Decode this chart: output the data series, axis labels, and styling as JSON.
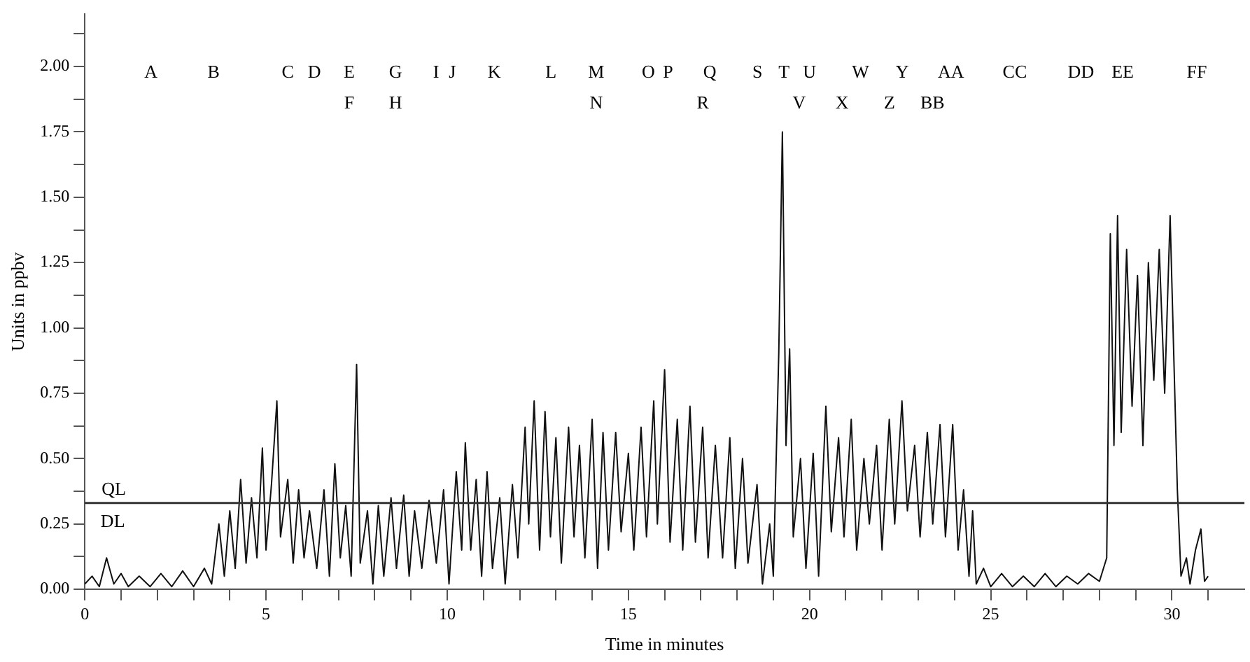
{
  "chart_data": {
    "type": "line",
    "xlabel": "Time in minutes",
    "ylabel": "Units in ppbv",
    "xlim": [
      0,
      32
    ],
    "ylim": [
      0,
      2.2
    ],
    "xticks": [
      0,
      {
        "value": 1,
        "label": null
      },
      {
        "value": 2,
        "label": null
      },
      {
        "value": 3,
        "label": null
      },
      {
        "value": 4,
        "label": null
      },
      5,
      {
        "value": 6,
        "label": null
      },
      {
        "value": 7,
        "label": null
      },
      {
        "value": 8,
        "label": null
      },
      {
        "value": 9,
        "label": null
      },
      10,
      {
        "value": 11,
        "label": null
      },
      {
        "value": 12,
        "label": null
      },
      {
        "value": 13,
        "label": null
      },
      {
        "value": 14,
        "label": null
      },
      15,
      {
        "value": 16,
        "label": null
      },
      {
        "value": 17,
        "label": null
      },
      {
        "value": 18,
        "label": null
      },
      {
        "value": 19,
        "label": null
      },
      20,
      {
        "value": 21,
        "label": null
      },
      {
        "value": 22,
        "label": null
      },
      {
        "value": 23,
        "label": null
      },
      {
        "value": 24,
        "label": null
      },
      25,
      {
        "value": 26,
        "label": null
      },
      {
        "value": 27,
        "label": null
      },
      {
        "value": 28,
        "label": null
      },
      {
        "value": 29,
        "label": null
      },
      30,
      {
        "value": 31,
        "label": null
      }
    ],
    "yticks": [
      {
        "value": 0,
        "label": "0.00"
      },
      {
        "value": 0.125,
        "label": null
      },
      {
        "value": 0.25,
        "label": "0.25"
      },
      {
        "value": 0.375,
        "label": null
      },
      {
        "value": 0.5,
        "label": "0.50"
      },
      {
        "value": 0.625,
        "label": null
      },
      {
        "value": 0.75,
        "label": "0.75"
      },
      {
        "value": 0.875,
        "label": null
      },
      {
        "value": 1,
        "label": "1.00"
      },
      {
        "value": 1.125,
        "label": null
      },
      {
        "value": 1.25,
        "label": "1.25"
      },
      {
        "value": 1.375,
        "label": null
      },
      {
        "value": 1.5,
        "label": "1.50"
      },
      {
        "value": 1.625,
        "label": null
      },
      {
        "value": 1.75,
        "label": "1.75"
      },
      {
        "value": 1.875,
        "label": null
      },
      {
        "value": 2,
        "label": "2.00"
      },
      {
        "value": 2.125,
        "label": null
      }
    ],
    "ref_lines": [
      {
        "axis": "y",
        "value": 0.33,
        "label": "QL",
        "color": "#333333"
      }
    ],
    "annotations": [
      "DL",
      "A",
      "B",
      "C",
      "D",
      "E",
      "F",
      "G",
      "H",
      "I",
      "J",
      "K",
      "L",
      "M",
      "N",
      "O",
      "P",
      "Q",
      "R",
      "S",
      "T",
      "U",
      "V",
      "W",
      "X",
      "Y",
      "Z",
      "AA",
      "BB",
      "CC",
      "DD",
      "EE",
      "FF"
    ],
    "series": [
      {
        "color": "#111111",
        "x": [
          0,
          0.2,
          0.4,
          0.6,
          0.8,
          1.0,
          1.2,
          1.5,
          1.8,
          2.1,
          2.4,
          2.7,
          3.0,
          3.3,
          3.5,
          3.7,
          3.85,
          4.0,
          4.15,
          4.3,
          4.45,
          4.6,
          4.75,
          4.9,
          5.0,
          5.15,
          5.3,
          5.4,
          5.6,
          5.75,
          5.9,
          6.05,
          6.2,
          6.4,
          6.6,
          6.75,
          6.9,
          7.05,
          7.2,
          7.35,
          7.5,
          7.6,
          7.8,
          7.95,
          8.1,
          8.25,
          8.45,
          8.6,
          8.8,
          8.95,
          9.1,
          9.3,
          9.5,
          9.7,
          9.9,
          10.05,
          10.25,
          10.4,
          10.5,
          10.65,
          10.8,
          10.95,
          11.1,
          11.25,
          11.45,
          11.6,
          11.8,
          11.95,
          12.15,
          12.25,
          12.4,
          12.55,
          12.7,
          12.85,
          13.0,
          13.15,
          13.35,
          13.5,
          13.65,
          13.8,
          14.0,
          14.15,
          14.3,
          14.45,
          14.65,
          14.8,
          15.0,
          15.15,
          15.35,
          15.5,
          15.7,
          15.8,
          16.0,
          16.15,
          16.35,
          16.5,
          16.7,
          16.85,
          17.05,
          17.2,
          17.4,
          17.6,
          17.8,
          17.95,
          18.15,
          18.3,
          18.55,
          18.7,
          18.9,
          19.0,
          19.15,
          19.25,
          19.35,
          19.45,
          19.55,
          19.75,
          19.9,
          20.1,
          20.25,
          20.45,
          20.6,
          20.8,
          20.95,
          21.15,
          21.3,
          21.5,
          21.65,
          21.85,
          22.0,
          22.2,
          22.35,
          22.55,
          22.7,
          22.9,
          23.05,
          23.25,
          23.4,
          23.6,
          23.75,
          23.95,
          24.1,
          24.25,
          24.4,
          24.5,
          24.6,
          24.8,
          25.0,
          25.3,
          25.6,
          25.9,
          26.2,
          26.5,
          26.8,
          27.1,
          27.4,
          27.7,
          28.0,
          28.2,
          28.3,
          28.4,
          28.5,
          28.6,
          28.75,
          28.9,
          29.05,
          29.2,
          29.35,
          29.5,
          29.65,
          29.8,
          29.95,
          30.05,
          30.15,
          30.25,
          30.4,
          30.5,
          30.65,
          30.8,
          30.9,
          31.0
        ],
        "values": [
          0.02,
          0.05,
          0.01,
          0.12,
          0.02,
          0.06,
          0.01,
          0.05,
          0.01,
          0.06,
          0.01,
          0.07,
          0.01,
          0.08,
          0.02,
          0.25,
          0.05,
          0.3,
          0.08,
          0.42,
          0.1,
          0.35,
          0.12,
          0.54,
          0.15,
          0.4,
          0.72,
          0.2,
          0.42,
          0.1,
          0.38,
          0.12,
          0.3,
          0.08,
          0.38,
          0.05,
          0.48,
          0.12,
          0.32,
          0.05,
          0.86,
          0.1,
          0.3,
          0.02,
          0.32,
          0.05,
          0.35,
          0.08,
          0.36,
          0.05,
          0.3,
          0.08,
          0.34,
          0.1,
          0.38,
          0.02,
          0.45,
          0.15,
          0.56,
          0.15,
          0.42,
          0.05,
          0.45,
          0.08,
          0.35,
          0.02,
          0.4,
          0.12,
          0.62,
          0.25,
          0.72,
          0.15,
          0.68,
          0.2,
          0.58,
          0.1,
          0.62,
          0.2,
          0.55,
          0.12,
          0.65,
          0.08,
          0.6,
          0.15,
          0.6,
          0.22,
          0.52,
          0.15,
          0.62,
          0.2,
          0.72,
          0.25,
          0.84,
          0.18,
          0.65,
          0.15,
          0.7,
          0.18,
          0.62,
          0.12,
          0.55,
          0.12,
          0.58,
          0.08,
          0.5,
          0.1,
          0.4,
          0.02,
          0.25,
          0.05,
          0.9,
          1.75,
          0.55,
          0.92,
          0.2,
          0.5,
          0.08,
          0.52,
          0.05,
          0.7,
          0.22,
          0.58,
          0.2,
          0.65,
          0.15,
          0.5,
          0.25,
          0.55,
          0.15,
          0.65,
          0.25,
          0.72,
          0.3,
          0.55,
          0.2,
          0.6,
          0.25,
          0.63,
          0.2,
          0.63,
          0.15,
          0.38,
          0.05,
          0.3,
          0.02,
          0.08,
          0.01,
          0.06,
          0.01,
          0.05,
          0.01,
          0.06,
          0.01,
          0.05,
          0.02,
          0.06,
          0.03,
          0.12,
          1.36,
          0.55,
          1.43,
          0.6,
          1.3,
          0.7,
          1.2,
          0.55,
          1.25,
          0.8,
          1.3,
          0.75,
          1.43,
          0.9,
          0.38,
          0.05,
          0.12,
          0.02,
          0.15,
          0.23,
          0.03,
          0.05
        ]
      }
    ]
  }
}
